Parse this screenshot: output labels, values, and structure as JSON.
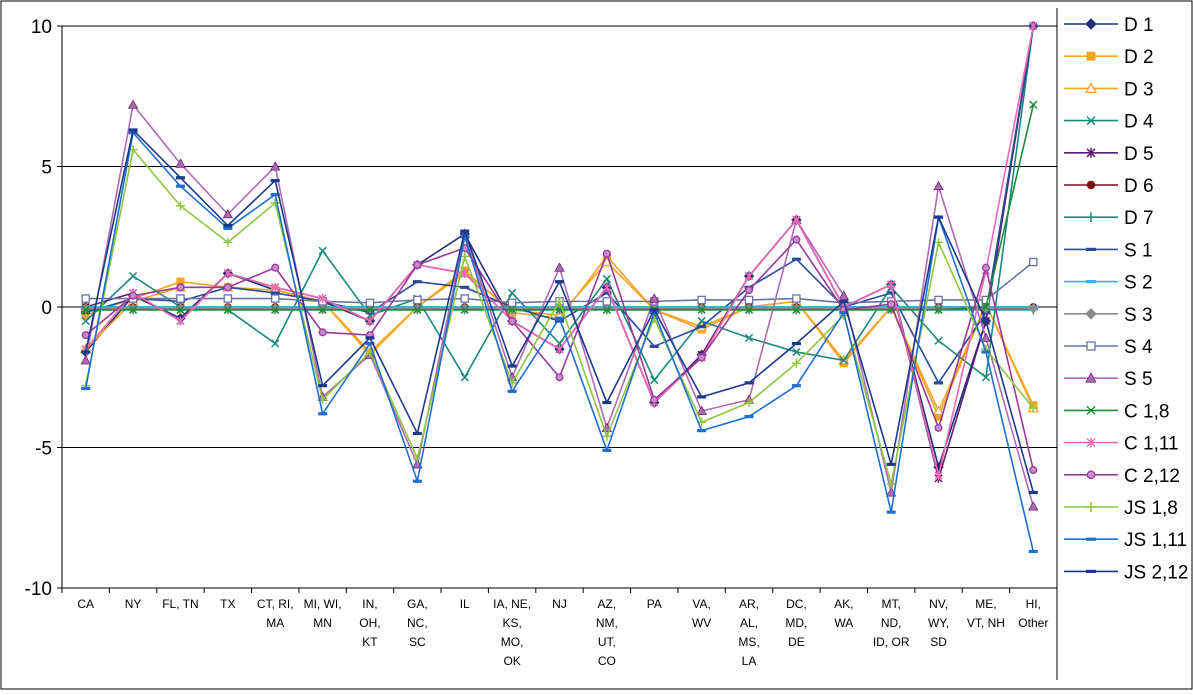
{
  "chart_data": {
    "type": "line",
    "title": "",
    "xlabel": "",
    "ylabel": "",
    "ylim": [
      -10,
      10
    ],
    "yticks": [
      "10",
      "5",
      "0",
      "-5",
      "-10"
    ],
    "grid": "horizontal at y = -5, 5, 10",
    "legend_placement": "right",
    "categories": [
      [
        "CA"
      ],
      [
        "NY"
      ],
      [
        "FL, TN"
      ],
      [
        "TX"
      ],
      [
        "CT, RI,",
        "MA"
      ],
      [
        "MI, WI,",
        "MN"
      ],
      [
        "IN,",
        "OH,",
        "KT"
      ],
      [
        "GA,",
        "NC,",
        "SC"
      ],
      [
        "IL"
      ],
      [
        "IA, NE,",
        "KS,",
        "MO,",
        "OK"
      ],
      [
        "NJ"
      ],
      [
        "AZ,",
        "NM,",
        "UT,",
        "CO"
      ],
      [
        "PA"
      ],
      [
        "VA,",
        "WV"
      ],
      [
        "AR,",
        "AL,",
        "MS,",
        "LA"
      ],
      [
        "DC,",
        "MD,",
        "DE"
      ],
      [
        "AK,",
        "WA"
      ],
      [
        "MT,",
        "ND,",
        "ID, OR"
      ],
      [
        "NV,",
        "WY,",
        "SD"
      ],
      [
        "ME,",
        "VT, NH"
      ],
      [
        "HI,",
        "Other"
      ]
    ],
    "series": [
      {
        "name": "D 1",
        "color": "#1f2f7a",
        "marker": "diamond",
        "values": [
          -1.6,
          0.4,
          -0.4,
          1.2,
          0.6,
          0.2,
          -0.5,
          1.5,
          2.6,
          -0.5,
          -1.5,
          0.7,
          -3.4,
          -1.7,
          1.1,
          3.1,
          0.0,
          0.8,
          -5.7,
          -0.5,
          10.0
        ]
      },
      {
        "name": "D 2",
        "color": "#f5a623",
        "marker": "square",
        "values": [
          -0.3,
          0.3,
          0.9,
          0.7,
          0.6,
          0.2,
          -1.7,
          0.0,
          1.3,
          -0.2,
          -0.4,
          1.8,
          -0.1,
          -0.8,
          0.0,
          0.2,
          -2.0,
          0.0,
          -3.9,
          0.1,
          -3.5
        ]
      },
      {
        "name": "D 3",
        "color": "#f5a623",
        "marker": "triangle-open",
        "values": [
          -1.5,
          0.2,
          0.7,
          0.7,
          0.6,
          0.2,
          -1.6,
          0.0,
          1.2,
          -0.1,
          -0.3,
          1.6,
          -0.1,
          -0.7,
          0.0,
          0.2,
          -1.9,
          0.0,
          -3.7,
          0.1,
          -3.6
        ]
      },
      {
        "name": "D 4",
        "color": "#1a8a7a",
        "marker": "x",
        "values": [
          -0.5,
          1.1,
          0.0,
          -0.1,
          -1.3,
          2.0,
          -0.3,
          0.3,
          -2.5,
          0.5,
          -1.3,
          1.0,
          -2.6,
          -0.5,
          -1.1,
          -1.6,
          -1.9,
          0.7,
          -1.2,
          -2.5,
          10.0
        ]
      },
      {
        "name": "D 5",
        "color": "#5a1f6e",
        "marker": "star",
        "values": [
          0.0,
          0.5,
          -0.5,
          1.2,
          0.7,
          0.3,
          -0.5,
          1.5,
          1.2,
          -0.5,
          -1.5,
          0.7,
          -3.4,
          -1.7,
          1.1,
          3.1,
          0.0,
          0.8,
          -6.1,
          -0.5,
          10.0
        ]
      },
      {
        "name": "D 6",
        "color": "#7a1010",
        "marker": "circle",
        "values": [
          0.0,
          0.0,
          0.0,
          0.0,
          0.0,
          0.0,
          0.0,
          0.0,
          0.0,
          0.0,
          0.0,
          0.0,
          0.0,
          0.0,
          0.0,
          0.0,
          0.0,
          0.0,
          0.0,
          0.0,
          0.0
        ]
      },
      {
        "name": "D 7",
        "color": "#1a8a7a",
        "marker": "plus",
        "values": [
          -0.1,
          -0.1,
          -0.1,
          -0.1,
          -0.1,
          -0.1,
          -0.1,
          -0.1,
          -0.1,
          -0.1,
          -0.1,
          -0.1,
          -0.1,
          -0.1,
          -0.1,
          -0.1,
          -0.1,
          -0.1,
          -0.1,
          -0.1,
          -0.1
        ]
      },
      {
        "name": "S 1",
        "color": "#2a4a9a",
        "marker": "dash",
        "values": [
          -0.2,
          0.3,
          0.2,
          0.7,
          0.5,
          0.2,
          -0.2,
          0.9,
          0.7,
          0.0,
          -0.5,
          0.5,
          -1.4,
          -0.7,
          0.7,
          1.7,
          0.0,
          0.5,
          -2.7,
          -0.2,
          10.0
        ]
      },
      {
        "name": "S 2",
        "color": "#29b6f6",
        "marker": "dash",
        "values": [
          0.0,
          0.0,
          0.0,
          0.0,
          0.0,
          0.0,
          0.0,
          0.0,
          0.0,
          0.0,
          0.0,
          0.0,
          0.0,
          0.0,
          0.0,
          0.0,
          0.0,
          0.0,
          0.0,
          0.0,
          0.0
        ]
      },
      {
        "name": "S 3",
        "color": "#8a8a8a",
        "marker": "diamond",
        "values": [
          -0.05,
          -0.05,
          -0.05,
          -0.05,
          -0.05,
          -0.05,
          -0.05,
          -0.05,
          -0.05,
          -0.05,
          -0.05,
          -0.05,
          -0.05,
          -0.05,
          -0.05,
          -0.05,
          -0.05,
          -0.05,
          -0.05,
          -0.05,
          -0.05
        ]
      },
      {
        "name": "S 4",
        "color": "#6c72a8",
        "marker": "square-open",
        "values": [
          0.3,
          0.3,
          0.3,
          0.3,
          0.3,
          0.2,
          0.15,
          0.25,
          0.3,
          0.15,
          0.2,
          0.2,
          0.2,
          0.25,
          0.25,
          0.3,
          0.15,
          0.2,
          0.25,
          0.25,
          1.6
        ]
      },
      {
        "name": "S 5",
        "color": "#b06ab5",
        "marker": "triangle",
        "values": [
          -1.9,
          7.2,
          5.1,
          3.3,
          5.0,
          -3.2,
          -1.7,
          -5.6,
          2.6,
          -2.5,
          1.4,
          -4.3,
          0.3,
          -3.7,
          -3.3,
          3.1,
          0.4,
          -6.6,
          4.3,
          -1.1,
          -7.1
        ]
      },
      {
        "name": "C 1,8",
        "color": "#1f8a3a",
        "marker": "x",
        "values": [
          -0.1,
          -0.1,
          -0.1,
          -0.1,
          -0.1,
          -0.1,
          -0.1,
          -0.1,
          -0.1,
          -0.1,
          -0.1,
          -0.1,
          -0.1,
          -0.1,
          -0.1,
          -0.1,
          -0.1,
          -0.1,
          -0.1,
          0.0,
          7.2
        ]
      },
      {
        "name": "C 1,11",
        "color": "#f06ab5",
        "marker": "star",
        "values": [
          -1.5,
          0.5,
          -0.5,
          1.2,
          0.7,
          0.3,
          -0.5,
          1.5,
          1.2,
          -0.5,
          -1.5,
          0.7,
          -3.4,
          -1.8,
          1.1,
          3.1,
          0.0,
          0.8,
          -6.0,
          1.3,
          10.0
        ]
      },
      {
        "name": "C 2,12",
        "color": "#9a3a9a",
        "marker": "circle-open",
        "values": [
          -1.0,
          0.4,
          0.7,
          0.7,
          1.4,
          -0.9,
          -1.0,
          1.5,
          2.1,
          -0.5,
          -2.5,
          1.9,
          -3.3,
          -1.8,
          0.6,
          2.4,
          -0.1,
          0.1,
          -4.3,
          1.4,
          -5.8
        ]
      },
      {
        "name": "JS 1,8",
        "color": "#8ec63f",
        "marker": "plus",
        "values": [
          -2.8,
          5.6,
          3.6,
          2.3,
          3.7,
          -3.3,
          -1.6,
          -5.4,
          1.8,
          -2.7,
          0.2,
          -4.6,
          -0.4,
          -4.1,
          -3.4,
          -2.0,
          -0.3,
          -6.3,
          2.3,
          -1.5,
          -3.6
        ]
      },
      {
        "name": "JS 1,11",
        "color": "#1e6fcf",
        "marker": "dash",
        "values": [
          -2.9,
          6.2,
          4.3,
          2.8,
          4.0,
          -3.8,
          -1.3,
          -6.2,
          2.5,
          -3.0,
          -0.4,
          -5.1,
          -0.2,
          -4.4,
          -3.9,
          -2.8,
          -0.2,
          -7.3,
          3.2,
          -1.6,
          -8.7
        ]
      },
      {
        "name": "JS 2,12",
        "color": "#1b3a8a",
        "marker": "dash",
        "values": [
          -1.6,
          6.3,
          4.6,
          2.9,
          4.5,
          -2.8,
          -1.1,
          -4.5,
          2.7,
          -2.1,
          0.9,
          -3.4,
          -0.1,
          -3.2,
          -2.7,
          -1.3,
          0.2,
          -5.6,
          3.2,
          -0.5,
          -6.6
        ]
      }
    ]
  }
}
